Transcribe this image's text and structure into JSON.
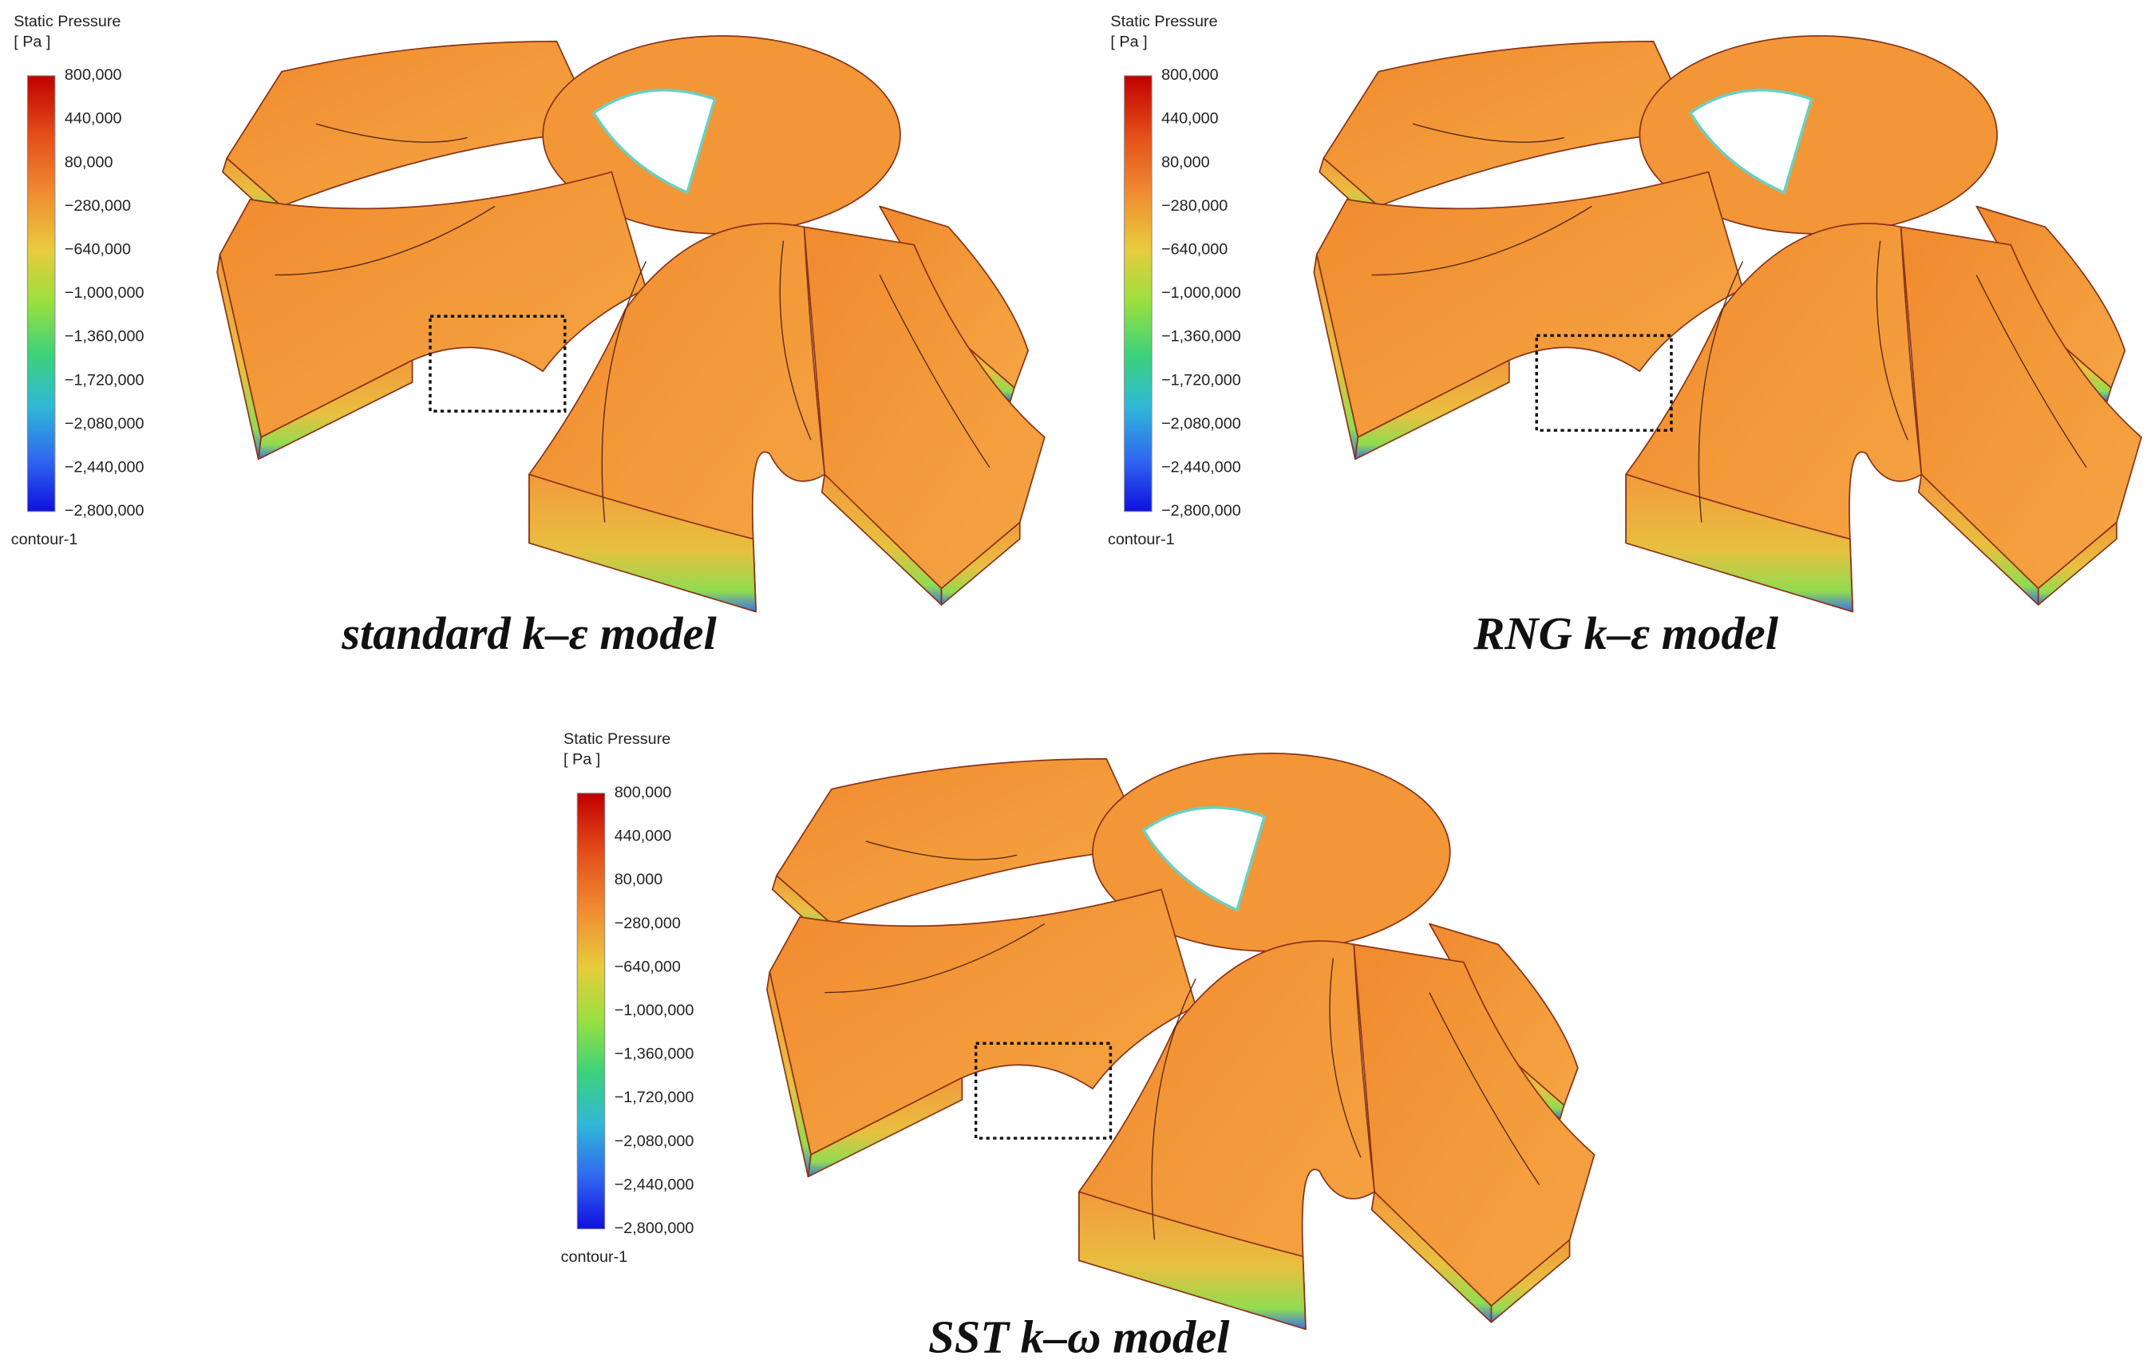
{
  "panels": [
    {
      "legend": {
        "title": "Static Pressure",
        "unit": "[ Pa ]",
        "ticks": [
          "800,000",
          "440,000",
          "80,000",
          "−280,000",
          "−640,000",
          "−1,000,000",
          "−1,360,000",
          "−1,720,000",
          "−2,080,000",
          "−2,440,000",
          "−2,800,000"
        ],
        "name": "contour-1"
      },
      "caption": "standard k–ε model"
    },
    {
      "legend": {
        "title": "Static Pressure",
        "unit": "[ Pa ]",
        "ticks": [
          "800,000",
          "440,000",
          "80,000",
          "−280,000",
          "−640,000",
          "−1,000,000",
          "−1,360,000",
          "−1,720,000",
          "−2,080,000",
          "−2,440,000",
          "−2,800,000"
        ],
        "name": "contour-1"
      },
      "caption": "RNG k–ε model"
    },
    {
      "legend": {
        "title": "Static Pressure",
        "unit": "[ Pa ]",
        "ticks": [
          "800,000",
          "440,000",
          "80,000",
          "−280,000",
          "−640,000",
          "−1,000,000",
          "−1,360,000",
          "−1,720,000",
          "−2,080,000",
          "−2,440,000",
          "−2,800,000"
        ],
        "name": "contour-1"
      },
      "caption": "SST k–ω model"
    }
  ]
}
